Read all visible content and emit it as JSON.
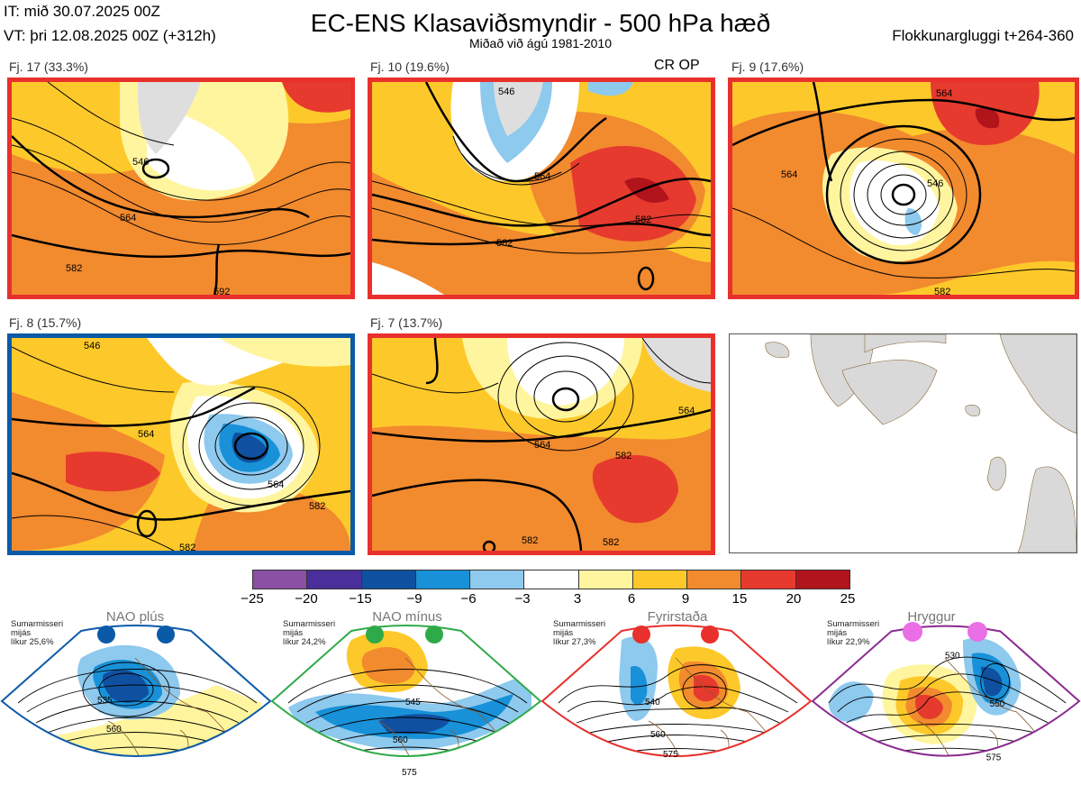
{
  "header": {
    "issue_time": "IT: mið 30.07.2025 00Z",
    "valid_time": "VT: þri 12.08.2025 00Z  (+312h)",
    "title": "EC-ENS Klasaviðsmyndir - 500 hPa hæð",
    "subtitle": "Miðað við ágú 1981-2010",
    "window": "Flokkunargluggi t+264-360"
  },
  "panels": [
    {
      "label": "Fj. 17 (33.3%)",
      "border_color": "#e8302c",
      "contour_labels": [
        "546",
        "564",
        "582",
        "592"
      ]
    },
    {
      "label": "Fj. 10 (19.6%)",
      "border_color": "#e8302c",
      "extra": "CR OP",
      "contour_labels": [
        "546",
        "564",
        "582",
        "582"
      ]
    },
    {
      "label": "Fj. 9 (17.6%)",
      "border_color": "#e8302c",
      "contour_labels": [
        "564",
        "564",
        "546",
        "582"
      ]
    },
    {
      "label": "Fj. 8 (15.7%)",
      "border_color": "#0b5aa8",
      "contour_labels": [
        "546",
        "564",
        "564",
        "582",
        "582"
      ]
    },
    {
      "label": "Fj. 7 (13.7%)",
      "border_color": "#e8302c",
      "contour_labels": [
        "564",
        "564",
        "582",
        "582",
        "582"
      ]
    }
  ],
  "colorbar": {
    "ticks": [
      "−25",
      "−20",
      "−15",
      "−9",
      "−6",
      "−3",
      "3",
      "6",
      "9",
      "15",
      "20",
      "25"
    ],
    "colors": [
      "#8b4fa3",
      "#4a2f9a",
      "#1050a0",
      "#1891d8",
      "#8ec9ee",
      "#ffffff",
      "#fff59e",
      "#fdc92a",
      "#f28a2e",
      "#e63a2e",
      "#b2141c"
    ]
  },
  "regimes": [
    {
      "name": "NAO plús",
      "season": "Sumarmisseri",
      "line2": "mijás",
      "probability": "líkur 25,6%",
      "border_color": "#0b5aa8",
      "dot_color": "#0b5aa8",
      "contour_labels": [
        "535",
        "560"
      ]
    },
    {
      "name": "NAO mínus",
      "season": "Sumarmisseri",
      "line2": "mijás",
      "probability": "líkur 24,2%",
      "border_color": "#2faa48",
      "dot_color": "#2faa48",
      "contour_labels": [
        "545",
        "560",
        "575"
      ]
    },
    {
      "name": "Fyrirstaða",
      "season": "Sumarmisseri",
      "line2": "mijás",
      "probability": "líkur 27,3%",
      "border_color": "#e8302c",
      "dot_color": "#e8302c",
      "contour_labels": [
        "540",
        "560",
        "575"
      ]
    },
    {
      "name": "Hryggur",
      "season": "Sumarmisseri",
      "line2": "mijás",
      "probability": "líkur 22,9%",
      "border_color": "#8a2a8f",
      "dot_color": "#ea6ee6",
      "contour_labels": [
        "530",
        "550",
        "575"
      ]
    }
  ]
}
